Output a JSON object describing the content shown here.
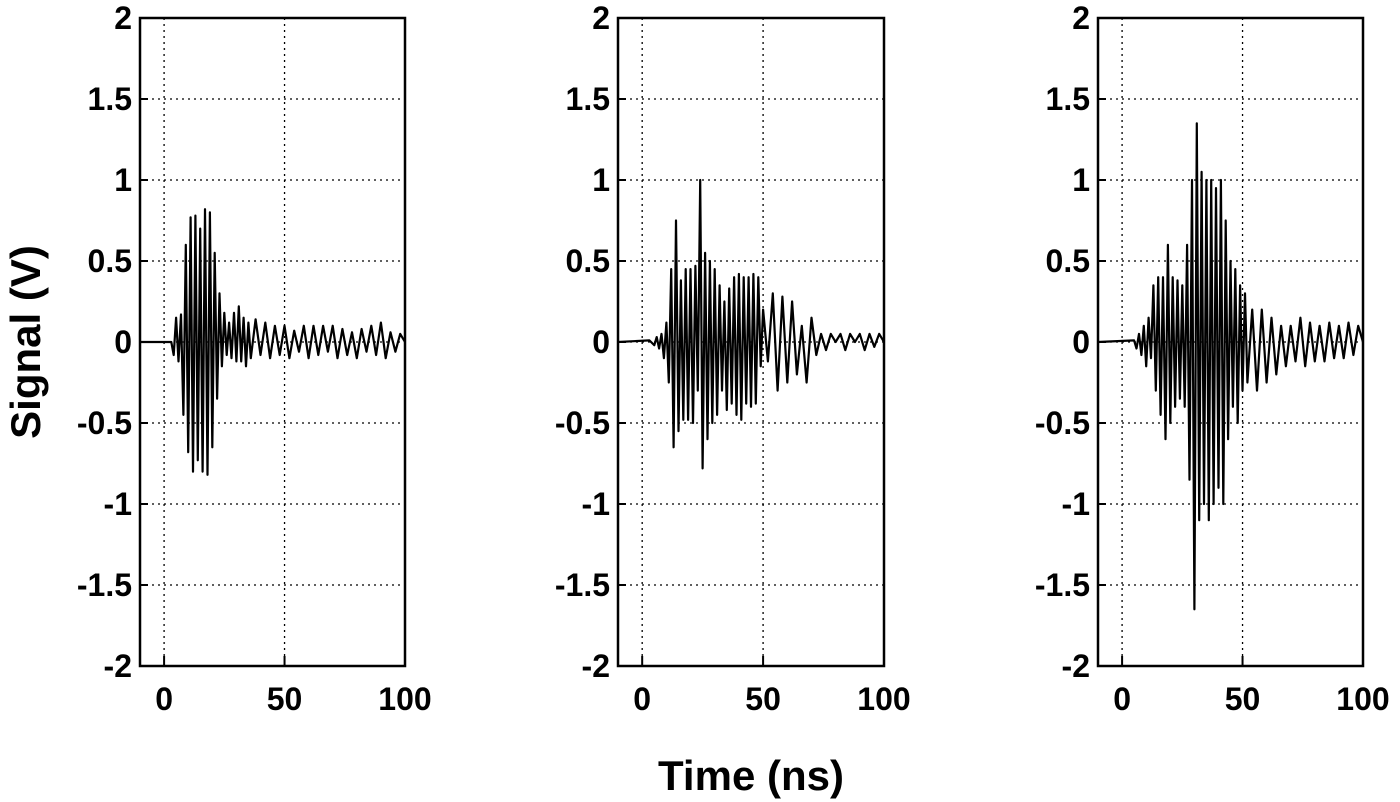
{
  "chart_data": [
    {
      "type": "line",
      "xlabel": "",
      "ylabel": "Signal (V)",
      "xlim": [
        -10,
        100
      ],
      "ylim": [
        -2,
        2
      ],
      "xticks": [
        "0",
        "50",
        "100"
      ],
      "yticks": [
        "2",
        "1.5",
        "1",
        "0.5",
        "0",
        "-0.5",
        "-1",
        "-1.5",
        "-2"
      ],
      "grid": true,
      "series": [
        {
          "x": [
            -10,
            3,
            4,
            5,
            6,
            7,
            8,
            9,
            10,
            11,
            12,
            13,
            14,
            15,
            16,
            17,
            18,
            19,
            20,
            21,
            22,
            23,
            24,
            25,
            26,
            27,
            28,
            29,
            30,
            31,
            32,
            33,
            34,
            35,
            36,
            38,
            40,
            42,
            44,
            46,
            48,
            50,
            52,
            54,
            56,
            58,
            60,
            62,
            64,
            66,
            68,
            70,
            72,
            74,
            76,
            78,
            80,
            82,
            84,
            86,
            88,
            90,
            92,
            94,
            96,
            98,
            100
          ],
          "values": [
            0,
            0,
            -0.08,
            0.15,
            -0.12,
            0.17,
            -0.45,
            0.6,
            -0.68,
            0.77,
            -0.8,
            0.78,
            -0.73,
            0.7,
            -0.8,
            0.82,
            -0.82,
            0.8,
            -0.65,
            0.55,
            -0.35,
            0.3,
            -0.15,
            0.18,
            -0.08,
            0.12,
            -0.1,
            0.18,
            -0.12,
            0.22,
            -0.12,
            0.15,
            -0.15,
            0.12,
            -0.1,
            0.14,
            -0.08,
            0.12,
            -0.1,
            0.1,
            -0.08,
            0.1,
            -0.1,
            0.07,
            -0.06,
            0.1,
            -0.1,
            0.1,
            -0.08,
            0.1,
            -0.06,
            0.1,
            -0.1,
            0.08,
            -0.08,
            0.06,
            -0.1,
            0.08,
            -0.06,
            0.1,
            -0.08,
            0.12,
            -0.1,
            0.06,
            -0.06,
            0.05,
            0
          ]
        }
      ]
    },
    {
      "type": "line",
      "xlabel": "Time (ns)",
      "ylabel": "",
      "xlim": [
        -10,
        100
      ],
      "ylim": [
        -2,
        2
      ],
      "xticks": [
        "0",
        "50",
        "100"
      ],
      "yticks": [
        "2",
        "1.5",
        "1",
        "0.5",
        "0",
        "-0.5",
        "-1",
        "-1.5",
        "-2"
      ],
      "grid": true,
      "series": [
        {
          "x": [
            -10,
            3,
            5,
            6,
            7,
            8,
            9,
            10,
            11,
            12,
            13,
            14,
            15,
            16,
            17,
            18,
            19,
            20,
            21,
            22,
            23,
            24,
            25,
            26,
            27,
            28,
            29,
            30,
            31,
            32,
            33,
            34,
            35,
            36,
            37,
            38,
            39,
            40,
            41,
            42,
            43,
            44,
            45,
            46,
            47,
            48,
            49,
            50,
            52,
            54,
            56,
            58,
            60,
            62,
            64,
            66,
            68,
            70,
            72,
            74,
            76,
            78,
            80,
            82,
            84,
            86,
            88,
            90,
            92,
            94,
            96,
            98,
            100
          ],
          "values": [
            0,
            0.01,
            -0.02,
            0.03,
            -0.04,
            0.05,
            -0.1,
            0.12,
            -0.25,
            0.45,
            -0.65,
            0.75,
            -0.55,
            0.38,
            -0.48,
            0.45,
            -0.48,
            0.45,
            -0.5,
            0.47,
            -0.3,
            1.0,
            -0.78,
            0.55,
            -0.6,
            0.5,
            -0.5,
            0.45,
            -0.45,
            0.35,
            -0.3,
            0.25,
            -0.42,
            0.33,
            -0.38,
            0.4,
            -0.45,
            0.42,
            -0.48,
            0.4,
            -0.38,
            0.4,
            -0.4,
            0.42,
            -0.38,
            0.4,
            -0.15,
            0.2,
            -0.12,
            0.3,
            -0.3,
            0.28,
            -0.25,
            0.25,
            -0.2,
            0.1,
            -0.25,
            0.15,
            -0.08,
            0.05,
            -0.05,
            0.05,
            0.0,
            0.05,
            -0.05,
            0.05,
            0.0,
            0.05,
            -0.05,
            0.05,
            -0.03,
            0.05,
            0
          ]
        }
      ]
    },
    {
      "type": "line",
      "xlabel": "",
      "ylabel": "",
      "xlim": [
        -10,
        100
      ],
      "ylim": [
        -2,
        2
      ],
      "xticks": [
        "0",
        "50",
        "100"
      ],
      "yticks": [
        "2",
        "1.5",
        "1",
        "0.5",
        "0",
        "-0.5",
        "-1",
        "-1.5",
        "-2"
      ],
      "grid": true,
      "series": [
        {
          "x": [
            -10,
            5,
            6,
            7,
            8,
            9,
            10,
            11,
            12,
            13,
            14,
            15,
            16,
            17,
            18,
            19,
            20,
            21,
            22,
            23,
            24,
            25,
            26,
            27,
            28,
            29,
            30,
            31,
            32,
            33,
            34,
            35,
            36,
            37,
            38,
            39,
            40,
            41,
            42,
            43,
            44,
            45,
            46,
            47,
            48,
            49,
            50,
            51,
            52,
            54,
            56,
            58,
            60,
            62,
            64,
            66,
            68,
            70,
            72,
            74,
            76,
            78,
            80,
            82,
            84,
            86,
            88,
            90,
            92,
            94,
            96,
            98,
            100
          ],
          "values": [
            0,
            0.01,
            -0.04,
            0.05,
            -0.08,
            0.1,
            -0.15,
            0.15,
            -0.1,
            0.35,
            -0.3,
            0.4,
            -0.45,
            0.4,
            -0.6,
            0.6,
            -0.5,
            0.4,
            -0.4,
            0.38,
            -0.35,
            0.35,
            -0.4,
            0.6,
            -0.85,
            1.0,
            -1.65,
            1.35,
            -1.1,
            1.05,
            -1.0,
            1.0,
            -1.1,
            1.0,
            -1.0,
            0.95,
            -0.9,
            1.0,
            -1.0,
            0.75,
            -0.6,
            0.5,
            -0.4,
            0.45,
            -0.5,
            0.35,
            -0.3,
            0.3,
            -0.25,
            0.2,
            -0.3,
            0.2,
            -0.25,
            0.15,
            -0.2,
            0.1,
            -0.15,
            0.1,
            -0.12,
            0.15,
            -0.15,
            0.12,
            -0.12,
            0.1,
            -0.12,
            0.12,
            -0.1,
            0.1,
            -0.1,
            0.12,
            -0.08,
            0.1,
            0
          ]
        }
      ]
    }
  ]
}
